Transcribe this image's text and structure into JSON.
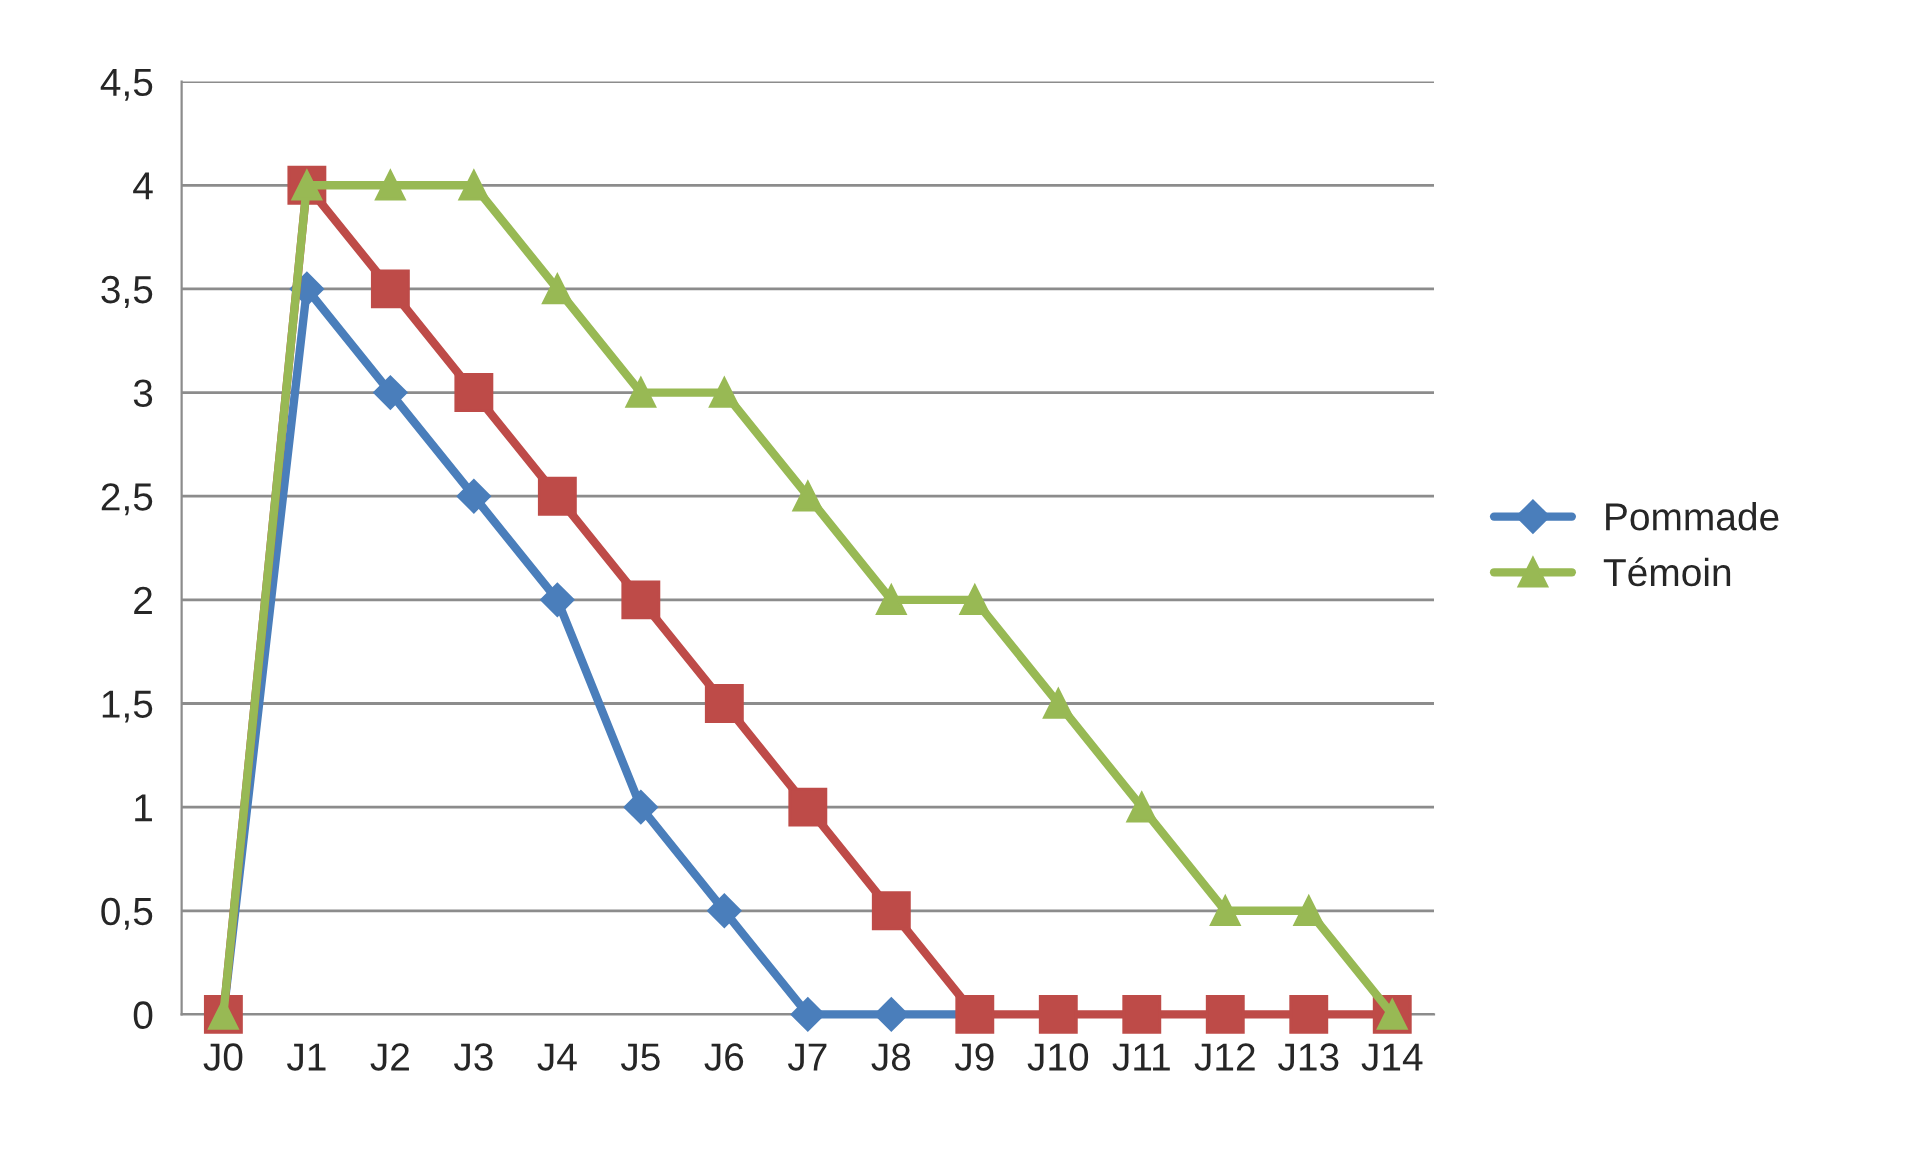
{
  "chart_data": {
    "type": "line",
    "categories": [
      "J0",
      "J1",
      "J2",
      "J3",
      "J4",
      "J5",
      "J6",
      "J7",
      "J8",
      "J9",
      "J10",
      "J11",
      "J12",
      "J13",
      "J14"
    ],
    "series": [
      {
        "name": "Pommade",
        "color": "#4a7ebb",
        "marker": "diamond",
        "values": [
          0,
          3.5,
          3,
          2.5,
          2,
          1,
          0.5,
          0,
          0,
          0,
          null,
          null,
          null,
          null,
          null
        ]
      },
      {
        "color": "#be4b48",
        "marker": "square",
        "values": [
          0,
          4,
          3.5,
          3,
          2.5,
          2,
          1.5,
          1,
          0.5,
          0,
          0,
          0,
          0,
          0,
          0
        ]
      },
      {
        "name": "Témoin",
        "color": "#98b954",
        "marker": "triangle",
        "values": [
          0,
          4,
          4,
          4,
          3.5,
          3,
          3,
          2.5,
          2,
          2,
          1.5,
          1,
          0.5,
          0.5,
          0
        ]
      }
    ],
    "ylim": [
      0,
      4.5
    ],
    "yticks": [
      0,
      {
        "value": 0.5,
        "label": "0,5"
      },
      1,
      {
        "value": 1.5,
        "label": "1,5"
      },
      2,
      {
        "value": 2.5,
        "label": "2,5"
      },
      3,
      {
        "value": 3.5,
        "label": "3,5"
      },
      4,
      {
        "value": 4.5,
        "label": "4,5"
      }
    ],
    "grid": "y",
    "legend": "right",
    "line_style": "solid"
  }
}
